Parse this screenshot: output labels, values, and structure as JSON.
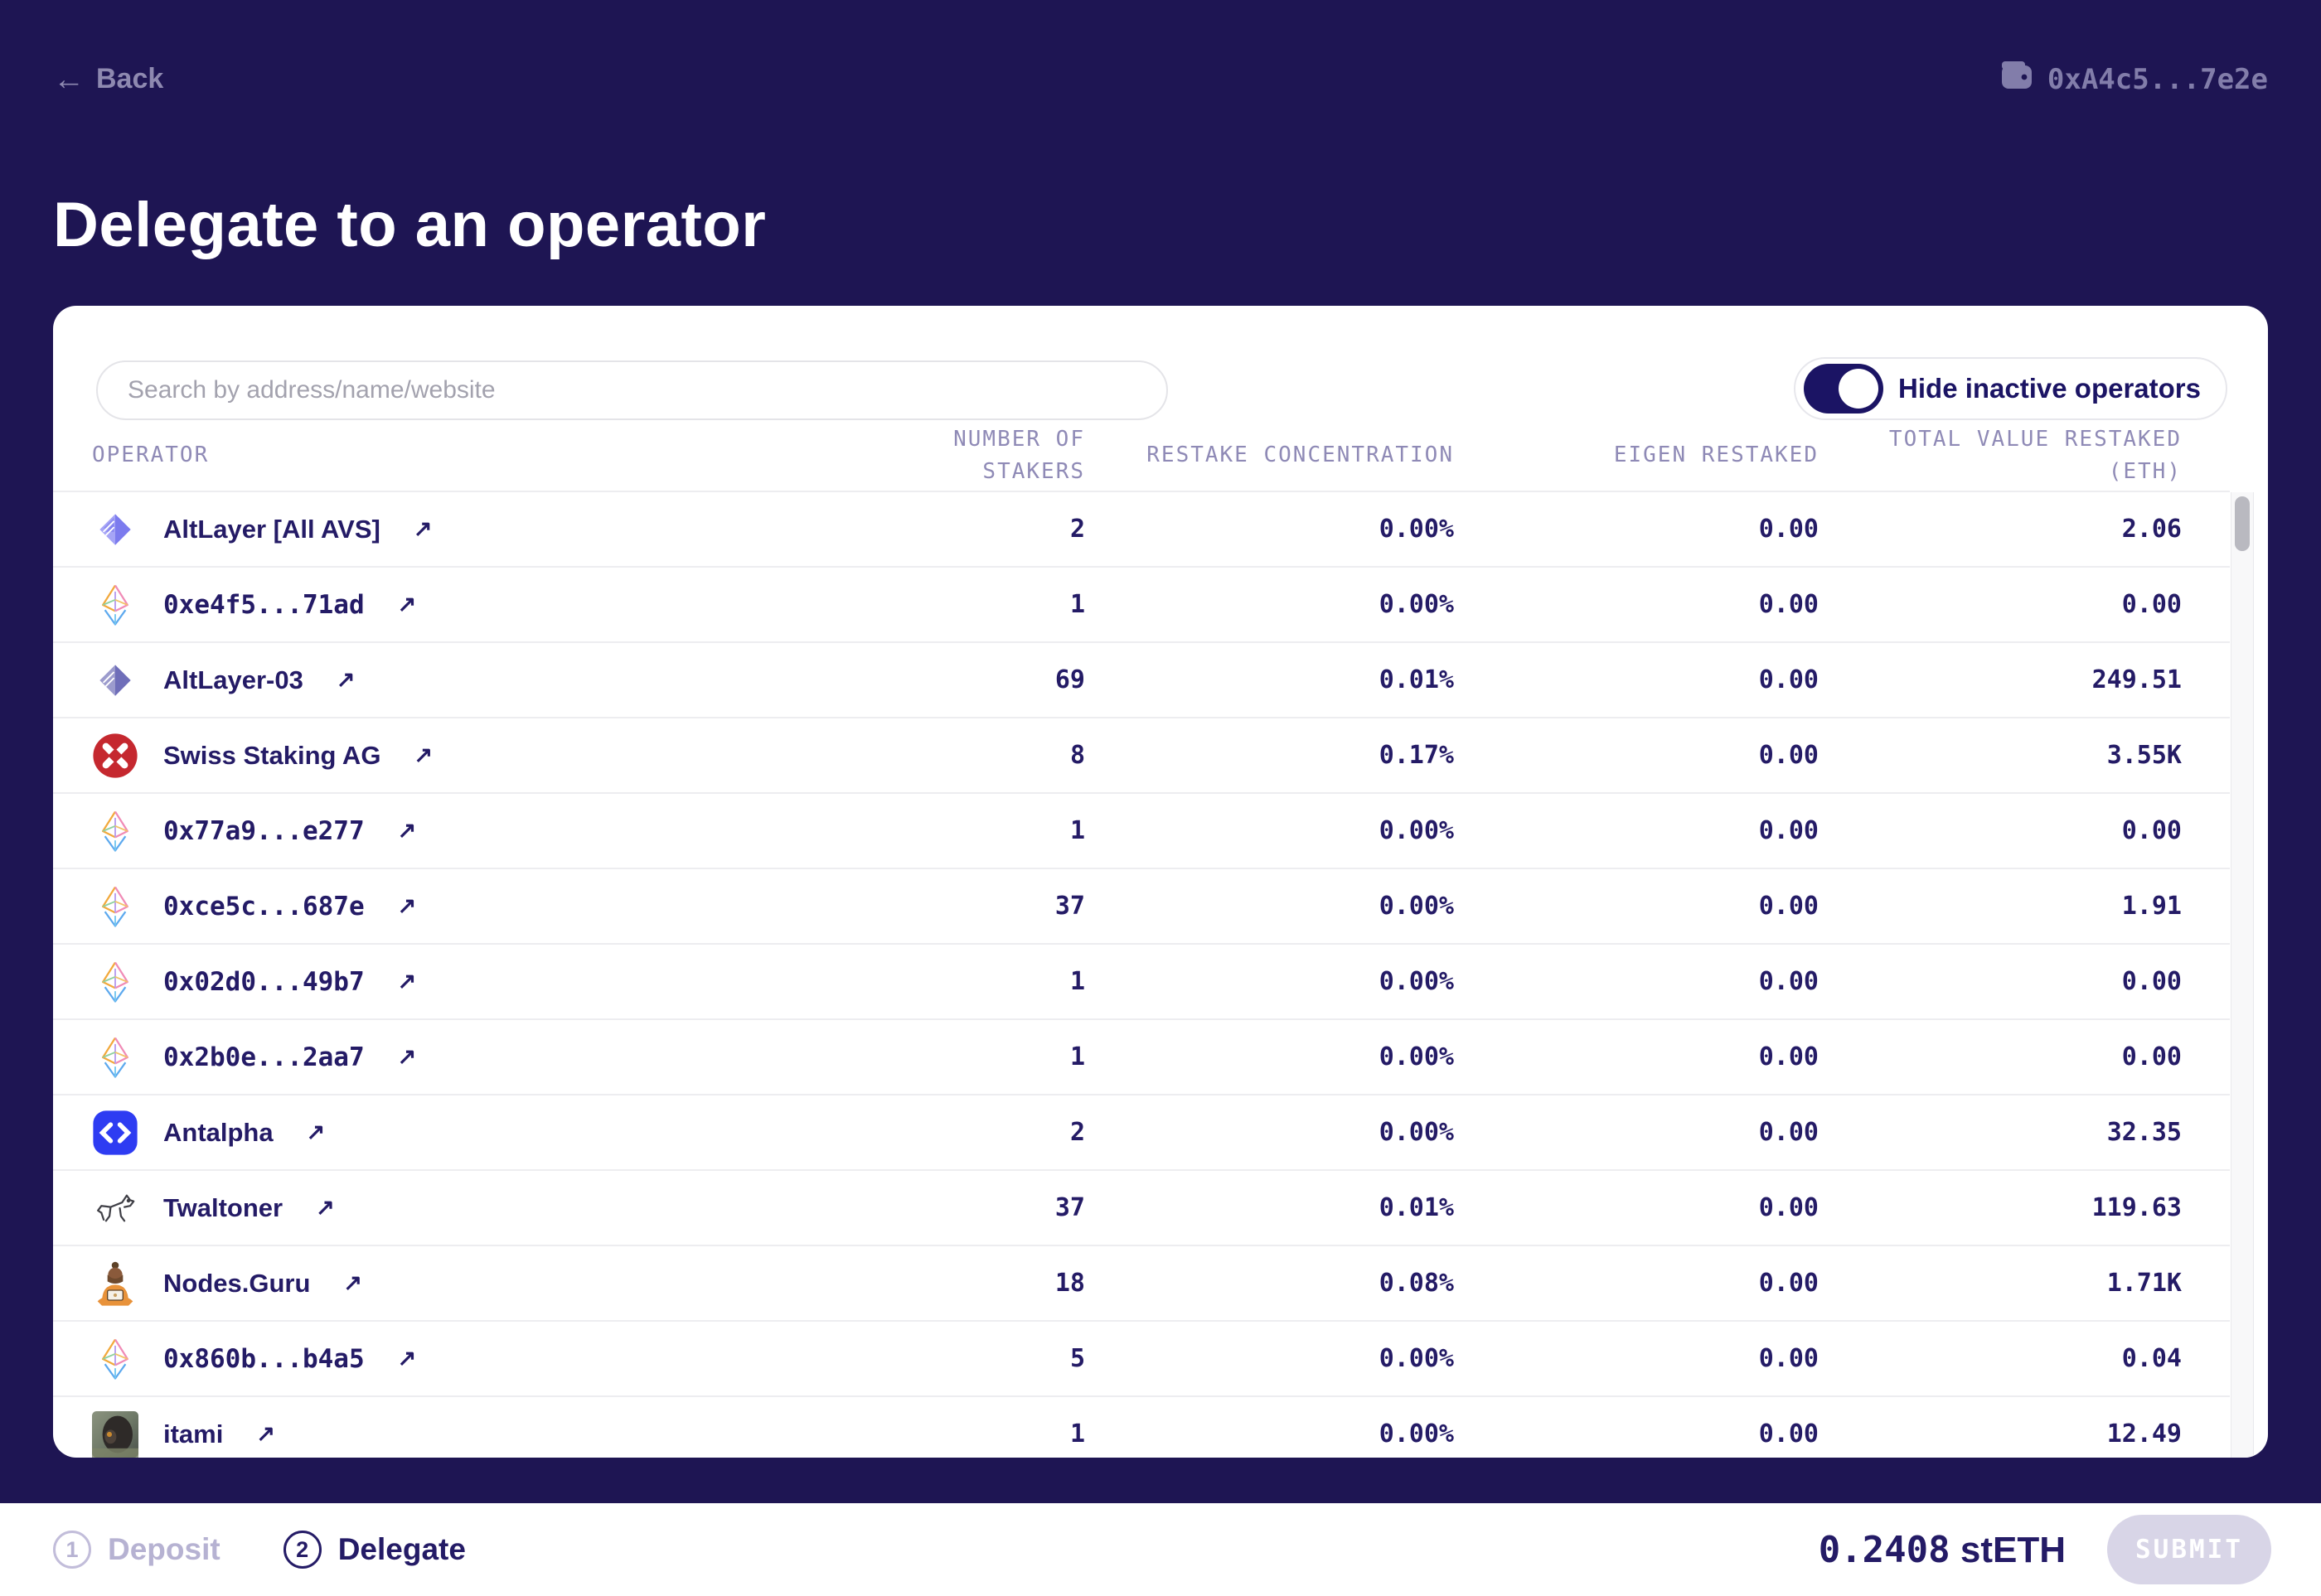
{
  "theme": {
    "background": "#1e1553",
    "card": "#ffffff",
    "primary_text": "#241b66",
    "muted_text": "#8e89b0",
    "column_header_text": "#8f8ab6",
    "toggle_on": "#1b1464",
    "submit_disabled_bg": "#d8d5e7",
    "antalpha_blue": "#2e3cf2",
    "swiss_red": "#c5282f"
  },
  "top": {
    "back_label": "Back",
    "back_arrow": "←",
    "wallet_address": "0xA4c5...7e2e"
  },
  "page_title": "Delegate to an operator",
  "controls": {
    "search_placeholder": "Search by address/name/website",
    "toggle_label": "Hide inactive operators",
    "toggle_state": "on"
  },
  "table": {
    "columns": [
      {
        "label": "OPERATOR"
      },
      {
        "label": "NUMBER OF STAKERS"
      },
      {
        "label": "RESTAKE CONCENTRATION"
      },
      {
        "label": "EIGEN RESTAKED"
      },
      {
        "label": "TOTAL VALUE RESTAKED",
        "label2": "(ETH)"
      }
    ],
    "rows": [
      {
        "name": "AltLayer [All AVS]",
        "mono": false,
        "icon": "altlayer-icon",
        "stakers": "2",
        "concentration": "0.00%",
        "eigen": "0.00",
        "total": "2.06"
      },
      {
        "name": "0xe4f5...71ad",
        "mono": true,
        "icon": "eth-icon",
        "stakers": "1",
        "concentration": "0.00%",
        "eigen": "0.00",
        "total": "0.00"
      },
      {
        "name": "AltLayer-03",
        "mono": false,
        "icon": "altlayer-dark-icon",
        "stakers": "69",
        "concentration": "0.01%",
        "eigen": "0.00",
        "total": "249.51"
      },
      {
        "name": "Swiss Staking AG",
        "mono": false,
        "icon": "swiss-staking-icon",
        "stakers": "8",
        "concentration": "0.17%",
        "eigen": "0.00",
        "total": "3.55K"
      },
      {
        "name": "0x77a9...e277",
        "mono": true,
        "icon": "eth-icon",
        "stakers": "1",
        "concentration": "0.00%",
        "eigen": "0.00",
        "total": "0.00"
      },
      {
        "name": "0xce5c...687e",
        "mono": true,
        "icon": "eth-icon",
        "stakers": "37",
        "concentration": "0.00%",
        "eigen": "0.00",
        "total": "1.91"
      },
      {
        "name": "0x02d0...49b7",
        "mono": true,
        "icon": "eth-icon",
        "stakers": "1",
        "concentration": "0.00%",
        "eigen": "0.00",
        "total": "0.00"
      },
      {
        "name": "0x2b0e...2aa7",
        "mono": true,
        "icon": "eth-icon",
        "stakers": "1",
        "concentration": "0.00%",
        "eigen": "0.00",
        "total": "0.00"
      },
      {
        "name": "Antalpha",
        "mono": false,
        "icon": "antalpha-icon",
        "stakers": "2",
        "concentration": "0.00%",
        "eigen": "0.00",
        "total": "32.35"
      },
      {
        "name": "Twaltoner",
        "mono": false,
        "icon": "dog-icon",
        "stakers": "37",
        "concentration": "0.01%",
        "eigen": "0.00",
        "total": "119.63"
      },
      {
        "name": "Nodes.Guru",
        "mono": false,
        "icon": "guru-icon",
        "stakers": "18",
        "concentration": "0.08%",
        "eigen": "0.00",
        "total": "1.71K"
      },
      {
        "name": "0x860b...b4a5",
        "mono": true,
        "icon": "eth-icon",
        "stakers": "5",
        "concentration": "0.00%",
        "eigen": "0.00",
        "total": "0.04"
      },
      {
        "name": "itami",
        "mono": false,
        "icon": "monkey-photo-icon",
        "stakers": "1",
        "concentration": "0.00%",
        "eigen": "0.00",
        "total": "12.49"
      }
    ]
  },
  "footer": {
    "steps": [
      {
        "number": "1",
        "label": "Deposit",
        "active": false
      },
      {
        "number": "2",
        "label": "Delegate",
        "active": true
      }
    ],
    "amount_value": "0.2408",
    "amount_unit": "stETH",
    "submit_label": "SUBMIT"
  }
}
